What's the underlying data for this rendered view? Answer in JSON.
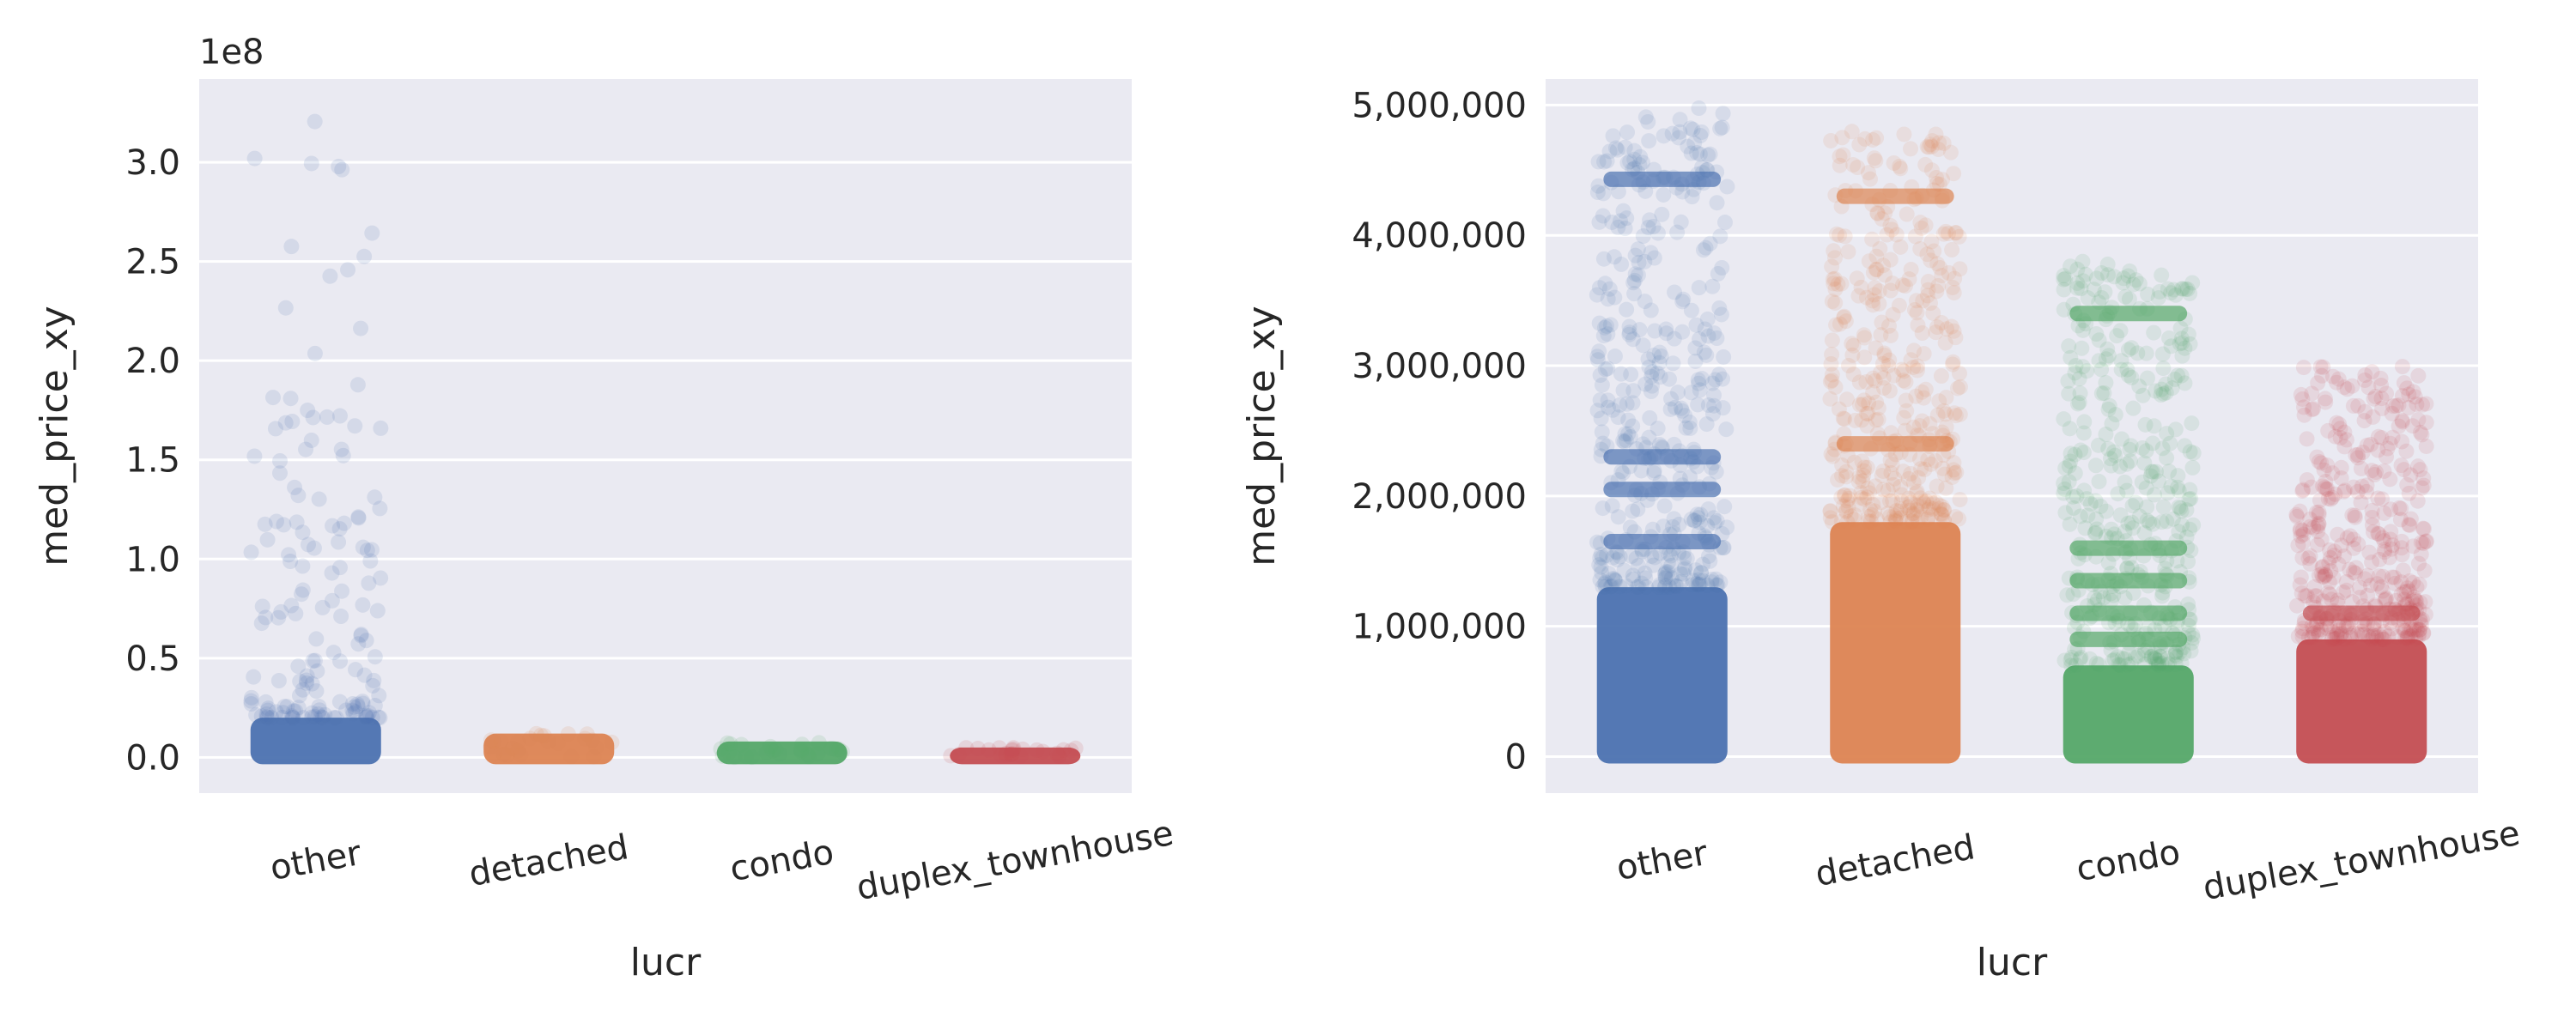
{
  "colors": {
    "background": "#eaeaf2",
    "grid": "#ffffff",
    "text": "#262626",
    "other": "#4c72b0",
    "detached": "#dd8452",
    "condo": "#55a868",
    "duplex_townhouse": "#c44e52"
  },
  "chart_data": [
    {
      "type": "scatter",
      "subtype": "strip",
      "xlabel": "lucr",
      "ylabel": "med_price_xy",
      "categories": [
        "other",
        "detached",
        "condo",
        "duplex_townhouse"
      ],
      "ylim": [
        -18000000,
        342000000
      ],
      "yticks": [
        0,
        50000000,
        100000000,
        150000000,
        200000000,
        250000000,
        300000000
      ],
      "ytick_labels": [
        "0.0",
        "0.5",
        "1.0",
        "1.5",
        "2.0",
        "2.5",
        "3.0"
      ],
      "offset_text": "1e8",
      "grid": true,
      "approx_range": {
        "other": [
          0,
          325000000
        ],
        "detached": [
          0,
          12000000
        ],
        "condo": [
          0,
          8000000
        ],
        "duplex_townhouse": [
          0,
          5000000
        ]
      }
    },
    {
      "type": "scatter",
      "subtype": "strip",
      "xlabel": "lucr",
      "ylabel": "med_price_xy",
      "categories": [
        "other",
        "detached",
        "condo",
        "duplex_townhouse"
      ],
      "ylim": [
        -280000,
        5200000
      ],
      "yticks": [
        0,
        1000000,
        2000000,
        3000000,
        4000000,
        5000000
      ],
      "ytick_labels": [
        "0",
        "1,000,000",
        "2,000,000",
        "3,000,000",
        "4,000,000",
        "5,000,000"
      ],
      "grid": true,
      "approx_range": {
        "other": [
          0,
          5000000
        ],
        "detached": [
          0,
          4800000
        ],
        "condo": [
          0,
          3800000
        ],
        "duplex_townhouse": [
          0,
          3000000
        ]
      }
    }
  ]
}
